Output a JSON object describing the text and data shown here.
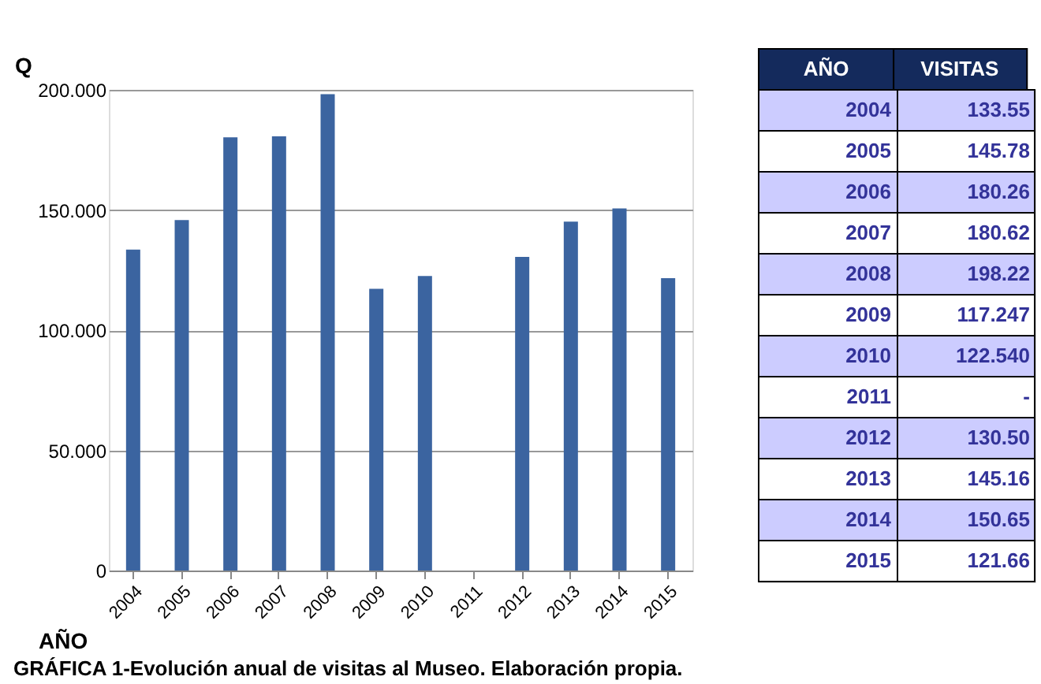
{
  "chart_data": {
    "type": "bar",
    "title": "GRÁFICA 1-Evolución anual de visitas al Museo. Elaboración propia.",
    "xlabel": "AÑO",
    "ylabel": "Q",
    "annotations": [
      "VISITAS",
      "133.55",
      "145.78",
      "180.26",
      "180.62",
      "198.22",
      "117.247",
      "122.540",
      "-",
      "130.50",
      "145.16",
      "150.65",
      "121.66"
    ],
    "categories": [
      "2004",
      "2005",
      "2006",
      "2007",
      "2008",
      "2009",
      "2010",
      "2011",
      "2012",
      "2013",
      "2014",
      "2015"
    ],
    "values": [
      133.55,
      145.78,
      180.26,
      180.62,
      198.22,
      117.25,
      122.54,
      null,
      130.5,
      145.16,
      150.65,
      121.66
    ],
    "color": "#3b64a0",
    "ylim": [
      0,
      200
    ],
    "yticks": [
      0,
      {
        "value": 50,
        "label": "50.000"
      },
      {
        "value": 100,
        "label": "100.000"
      },
      {
        "value": 150,
        "label": "150.000"
      },
      {
        "value": 200,
        "label": "200.000"
      }
    ],
    "grid": "y"
  }
}
